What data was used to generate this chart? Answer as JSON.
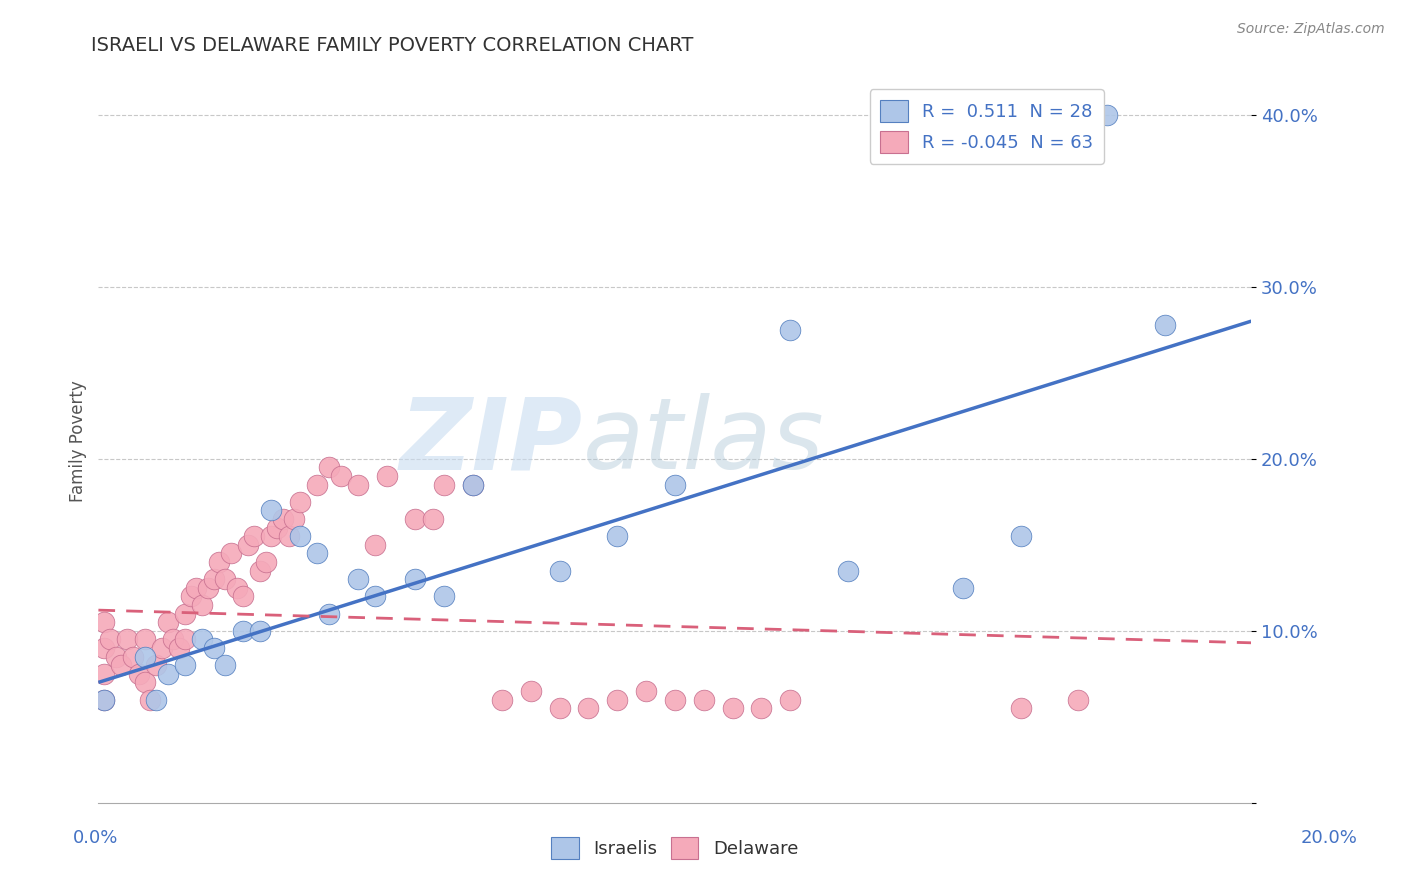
{
  "title": "ISRAELI VS DELAWARE FAMILY POVERTY CORRELATION CHART",
  "source": "Source: ZipAtlas.com",
  "ylabel": "Family Poverty",
  "xlim": [
    0.0,
    0.2
  ],
  "ylim": [
    0.0,
    0.42
  ],
  "yticks": [
    0.0,
    0.1,
    0.2,
    0.3,
    0.4
  ],
  "ytick_labels": [
    "",
    "10.0%",
    "20.0%",
    "30.0%",
    "40.0%"
  ],
  "legend_r_israeli": " 0.511",
  "legend_n_israeli": "28",
  "legend_r_delaware": "-0.045",
  "legend_n_delaware": "63",
  "color_israeli": "#aec6e8",
  "color_delaware": "#f5aaba",
  "line_color_israeli": "#4472c4",
  "line_color_delaware": "#d9607a",
  "watermark_zip": "ZIP",
  "watermark_atlas": "atlas",
  "isr_line_x0": 0.0,
  "isr_line_y0": 0.07,
  "isr_line_x1": 0.2,
  "isr_line_y1": 0.28,
  "del_line_x0": 0.0,
  "del_line_y0": 0.112,
  "del_line_x1": 0.2,
  "del_line_y1": 0.093,
  "israeli_x": [
    0.001,
    0.008,
    0.01,
    0.012,
    0.015,
    0.018,
    0.02,
    0.022,
    0.025,
    0.028,
    0.03,
    0.035,
    0.038,
    0.04,
    0.045,
    0.048,
    0.055,
    0.06,
    0.065,
    0.08,
    0.09,
    0.1,
    0.12,
    0.13,
    0.15,
    0.16,
    0.175,
    0.185
  ],
  "israeli_y": [
    0.06,
    0.085,
    0.06,
    0.075,
    0.08,
    0.095,
    0.09,
    0.08,
    0.1,
    0.1,
    0.17,
    0.155,
    0.145,
    0.11,
    0.13,
    0.12,
    0.13,
    0.12,
    0.185,
    0.135,
    0.155,
    0.185,
    0.275,
    0.135,
    0.125,
    0.155,
    0.4,
    0.278
  ],
  "delaware_x": [
    0.001,
    0.001,
    0.001,
    0.001,
    0.002,
    0.003,
    0.004,
    0.005,
    0.006,
    0.007,
    0.008,
    0.008,
    0.009,
    0.01,
    0.011,
    0.012,
    0.013,
    0.014,
    0.015,
    0.015,
    0.016,
    0.017,
    0.018,
    0.019,
    0.02,
    0.021,
    0.022,
    0.023,
    0.024,
    0.025,
    0.026,
    0.027,
    0.028,
    0.029,
    0.03,
    0.031,
    0.032,
    0.033,
    0.034,
    0.035,
    0.038,
    0.04,
    0.042,
    0.045,
    0.048,
    0.05,
    0.055,
    0.058,
    0.06,
    0.065,
    0.07,
    0.075,
    0.08,
    0.085,
    0.09,
    0.095,
    0.1,
    0.105,
    0.11,
    0.115,
    0.12,
    0.16,
    0.17
  ],
  "delaware_y": [
    0.105,
    0.09,
    0.075,
    0.06,
    0.095,
    0.085,
    0.08,
    0.095,
    0.085,
    0.075,
    0.095,
    0.07,
    0.06,
    0.08,
    0.09,
    0.105,
    0.095,
    0.09,
    0.11,
    0.095,
    0.12,
    0.125,
    0.115,
    0.125,
    0.13,
    0.14,
    0.13,
    0.145,
    0.125,
    0.12,
    0.15,
    0.155,
    0.135,
    0.14,
    0.155,
    0.16,
    0.165,
    0.155,
    0.165,
    0.175,
    0.185,
    0.195,
    0.19,
    0.185,
    0.15,
    0.19,
    0.165,
    0.165,
    0.185,
    0.185,
    0.06,
    0.065,
    0.055,
    0.055,
    0.06,
    0.065,
    0.06,
    0.06,
    0.055,
    0.055,
    0.06,
    0.055,
    0.06
  ]
}
